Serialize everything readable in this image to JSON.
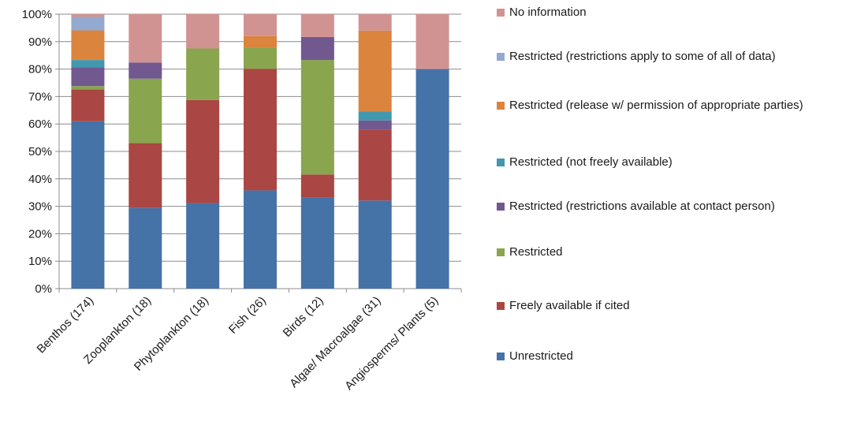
{
  "chart_data": {
    "type": "bar",
    "stacked": true,
    "percent": true,
    "categories": [
      "Benthos (174)",
      "Zooplankton (18)",
      "Phytoplankton (18)",
      "Fish (26)",
      "Birds (12)",
      "Algae/ Macroalgae (31)",
      "Angiosperms/ Plants (5)"
    ],
    "ylim": [
      0,
      100
    ],
    "yticks": [
      "0%",
      "10%",
      "20%",
      "30%",
      "40%",
      "50%",
      "60%",
      "70%",
      "80%",
      "90%",
      "100%"
    ],
    "grid": true,
    "legend_position": "right",
    "series": [
      {
        "name": "Unrestricted",
        "color": "#4572a7",
        "values": [
          61,
          29.4,
          31.2,
          35.8,
          33.3,
          32.1,
          80
        ]
      },
      {
        "name": "Freely available if cited",
        "color": "#aa4643",
        "values": [
          11.6,
          23.6,
          37.5,
          44.3,
          8.3,
          25.9,
          0
        ]
      },
      {
        "name": "Restricted",
        "color": "#89a54e",
        "values": [
          1.2,
          23.5,
          18.8,
          7.8,
          41.7,
          0,
          0
        ]
      },
      {
        "name": "Restricted (restrictions available at contact person)",
        "color": "#71588f",
        "values": [
          6.9,
          5.9,
          0,
          0,
          8.4,
          3.3,
          0
        ]
      },
      {
        "name": "Restricted (not freely available)",
        "color": "#4198af",
        "values": [
          2.6,
          0,
          0,
          0,
          0,
          3.2,
          0
        ]
      },
      {
        "name": "Restricted (release w/ permission of appropriate parties)",
        "color": "#db843d",
        "values": [
          10.8,
          0,
          0,
          4.1,
          0,
          29.5,
          0
        ]
      },
      {
        "name": "Restricted (restrictions apply to some of all of data)",
        "color": "#93a9cf",
        "values": [
          4.9,
          0,
          0,
          0,
          0,
          0,
          0
        ]
      },
      {
        "name": "No information",
        "color": "#d19392",
        "values": [
          1,
          17.6,
          12.5,
          8,
          8.3,
          6,
          20
        ]
      }
    ]
  }
}
